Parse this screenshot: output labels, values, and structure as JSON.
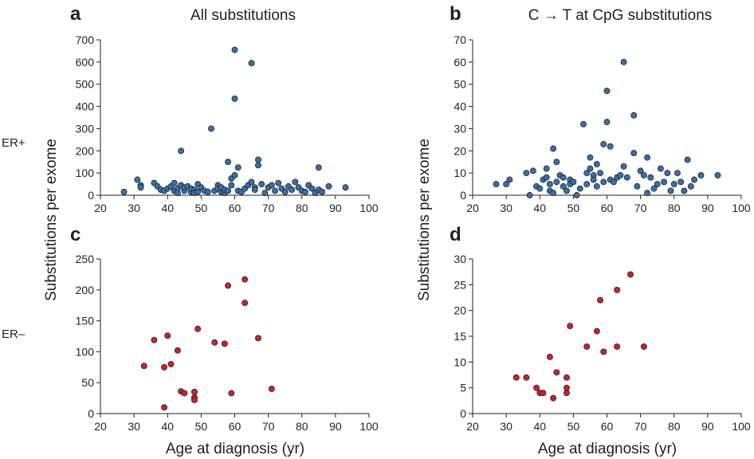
{
  "figure": {
    "row_labels": [
      "ER+",
      "ER–"
    ],
    "ylabel_top": "Substitutions per exome",
    "ylabel_bottom": "Substitutions per exome",
    "xlabel_left": "Age at diagnosis  (yr)",
    "xlabel_right": "Age at diagnosis  (yr)"
  },
  "colors": {
    "er_pos": "#3a6ea5",
    "er_neg": "#c0272d",
    "axis": "#231f20",
    "marker_edge": "#1a1a1a"
  },
  "chart_data": [
    {
      "panel": "a",
      "title": "All substitutions",
      "type": "scatter",
      "xlim": [
        20,
        100
      ],
      "ylim": [
        0,
        700
      ],
      "xticks": [
        20,
        30,
        40,
        50,
        60,
        70,
        80,
        90,
        100
      ],
      "yticks": [
        0,
        100,
        200,
        300,
        400,
        500,
        600,
        700
      ],
      "grid": false,
      "series": [
        {
          "color": "#3a6ea5",
          "points": [
            [
              27,
              15
            ],
            [
              31,
              70
            ],
            [
              32,
              45
            ],
            [
              32,
              35
            ],
            [
              36,
              55
            ],
            [
              37,
              40
            ],
            [
              38,
              25
            ],
            [
              39,
              20
            ],
            [
              40,
              30
            ],
            [
              41,
              40
            ],
            [
              42,
              55
            ],
            [
              42,
              20
            ],
            [
              43,
              30
            ],
            [
              43,
              10
            ],
            [
              44,
              200
            ],
            [
              44,
              45
            ],
            [
              45,
              20
            ],
            [
              45,
              35
            ],
            [
              46,
              40
            ],
            [
              47,
              15
            ],
            [
              47,
              30
            ],
            [
              48,
              25
            ],
            [
              48,
              10
            ],
            [
              49,
              50
            ],
            [
              49,
              15
            ],
            [
              50,
              35
            ],
            [
              51,
              20
            ],
            [
              52,
              15
            ],
            [
              53,
              300
            ],
            [
              54,
              20
            ],
            [
              55,
              45
            ],
            [
              55,
              30
            ],
            [
              56,
              15
            ],
            [
              56,
              35
            ],
            [
              57,
              10
            ],
            [
              57,
              25
            ],
            [
              58,
              150
            ],
            [
              58,
              20
            ],
            [
              59,
              75
            ],
            [
              59,
              45
            ],
            [
              60,
              655
            ],
            [
              60,
              435
            ],
            [
              60,
              90
            ],
            [
              61,
              125
            ],
            [
              61,
              20
            ],
            [
              62,
              15
            ],
            [
              63,
              30
            ],
            [
              64,
              45
            ],
            [
              65,
              595
            ],
            [
              65,
              60
            ],
            [
              66,
              35
            ],
            [
              66,
              25
            ],
            [
              67,
              160
            ],
            [
              67,
              135
            ],
            [
              68,
              50
            ],
            [
              69,
              10
            ],
            [
              70,
              35
            ],
            [
              71,
              45
            ],
            [
              72,
              20
            ],
            [
              73,
              55
            ],
            [
              74,
              30
            ],
            [
              75,
              15
            ],
            [
              76,
              40
            ],
            [
              77,
              25
            ],
            [
              78,
              60
            ],
            [
              79,
              35
            ],
            [
              80,
              20
            ],
            [
              81,
              15
            ],
            [
              82,
              45
            ],
            [
              83,
              30
            ],
            [
              84,
              10
            ],
            [
              85,
              25
            ],
            [
              85,
              125
            ],
            [
              86,
              15
            ],
            [
              88,
              40
            ],
            [
              93,
              35
            ]
          ]
        }
      ]
    },
    {
      "panel": "b",
      "title": "C → T at  CpG substitutions",
      "type": "scatter",
      "xlim": [
        20,
        100
      ],
      "ylim": [
        0,
        70
      ],
      "xticks": [
        20,
        30,
        40,
        50,
        60,
        70,
        80,
        90,
        100
      ],
      "yticks": [
        0,
        10,
        20,
        30,
        40,
        50,
        60,
        70
      ],
      "grid": false,
      "series": [
        {
          "color": "#3a6ea5",
          "points": [
            [
              27,
              5
            ],
            [
              30,
              5
            ],
            [
              31,
              7
            ],
            [
              36,
              10
            ],
            [
              37,
              0
            ],
            [
              38,
              11
            ],
            [
              39,
              4
            ],
            [
              40,
              3
            ],
            [
              41,
              7
            ],
            [
              42,
              12
            ],
            [
              42,
              8
            ],
            [
              43,
              5
            ],
            [
              43,
              2
            ],
            [
              44,
              21
            ],
            [
              44,
              1
            ],
            [
              45,
              15
            ],
            [
              45,
              6
            ],
            [
              46,
              9
            ],
            [
              47,
              4
            ],
            [
              47,
              8
            ],
            [
              48,
              2
            ],
            [
              49,
              7
            ],
            [
              49,
              5
            ],
            [
              50,
              6
            ],
            [
              51,
              0
            ],
            [
              52,
              3
            ],
            [
              53,
              32
            ],
            [
              54,
              10
            ],
            [
              54,
              5
            ],
            [
              55,
              12
            ],
            [
              55,
              17
            ],
            [
              56,
              9
            ],
            [
              56,
              7
            ],
            [
              57,
              14
            ],
            [
              57,
              4
            ],
            [
              58,
              10
            ],
            [
              59,
              6
            ],
            [
              59,
              23
            ],
            [
              60,
              47
            ],
            [
              60,
              33
            ],
            [
              61,
              22
            ],
            [
              61,
              7
            ],
            [
              62,
              6
            ],
            [
              63,
              8
            ],
            [
              64,
              9
            ],
            [
              65,
              60
            ],
            [
              65,
              13
            ],
            [
              66,
              8
            ],
            [
              68,
              36
            ],
            [
              68,
              19
            ],
            [
              69,
              4
            ],
            [
              70,
              11
            ],
            [
              71,
              9
            ],
            [
              72,
              17
            ],
            [
              72,
              1
            ],
            [
              73,
              8
            ],
            [
              74,
              3
            ],
            [
              75,
              5
            ],
            [
              76,
              12
            ],
            [
              77,
              6
            ],
            [
              78,
              10
            ],
            [
              79,
              2
            ],
            [
              80,
              5
            ],
            [
              81,
              10
            ],
            [
              82,
              6
            ],
            [
              83,
              2
            ],
            [
              84,
              16
            ],
            [
              85,
              4
            ],
            [
              86,
              7
            ],
            [
              88,
              9
            ],
            [
              93,
              9
            ]
          ]
        }
      ]
    },
    {
      "panel": "c",
      "type": "scatter",
      "xlim": [
        20,
        100
      ],
      "ylim": [
        0,
        250
      ],
      "xticks": [
        20,
        30,
        40,
        50,
        60,
        70,
        80,
        90,
        100
      ],
      "yticks": [
        0,
        50,
        100,
        150,
        200,
        250
      ],
      "grid": false,
      "series": [
        {
          "color": "#c0272d",
          "points": [
            [
              33,
              77
            ],
            [
              36,
              119
            ],
            [
              39,
              75
            ],
            [
              39,
              10
            ],
            [
              40,
              126
            ],
            [
              41,
              80
            ],
            [
              43,
              102
            ],
            [
              44,
              36
            ],
            [
              45,
              33
            ],
            [
              48,
              35
            ],
            [
              48,
              26
            ],
            [
              48,
              22
            ],
            [
              49,
              137
            ],
            [
              54,
              115
            ],
            [
              57,
              113
            ],
            [
              58,
              207
            ],
            [
              59,
              33
            ],
            [
              63,
              217
            ],
            [
              63,
              179
            ],
            [
              67,
              122
            ],
            [
              71,
              40
            ]
          ]
        }
      ]
    },
    {
      "panel": "d",
      "type": "scatter",
      "xlim": [
        20,
        100
      ],
      "ylim": [
        0,
        30
      ],
      "xticks": [
        20,
        30,
        40,
        50,
        60,
        70,
        80,
        90,
        100
      ],
      "yticks": [
        0,
        5,
        10,
        15,
        20,
        25,
        30
      ],
      "grid": false,
      "series": [
        {
          "color": "#c0272d",
          "points": [
            [
              33,
              7
            ],
            [
              36,
              7
            ],
            [
              39,
              5
            ],
            [
              40,
              4
            ],
            [
              41,
              4
            ],
            [
              43,
              11
            ],
            [
              44,
              3
            ],
            [
              45,
              8
            ],
            [
              48,
              7
            ],
            [
              48,
              5
            ],
            [
              48,
              4
            ],
            [
              49,
              17
            ],
            [
              54,
              13
            ],
            [
              57,
              16
            ],
            [
              58,
              22
            ],
            [
              59,
              12
            ],
            [
              63,
              24
            ],
            [
              63,
              13
            ],
            [
              67,
              27
            ],
            [
              71,
              13
            ]
          ]
        }
      ]
    }
  ]
}
